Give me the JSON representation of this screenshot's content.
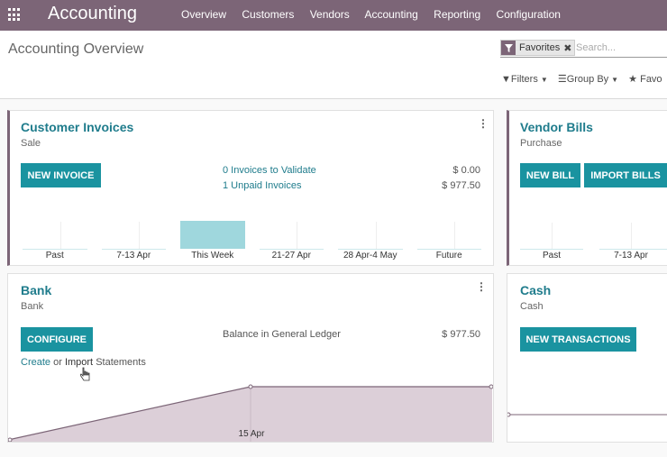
{
  "navbar": {
    "brand": "Accounting",
    "menu": [
      "Overview",
      "Customers",
      "Vendors",
      "Accounting",
      "Reporting",
      "Configuration"
    ]
  },
  "control": {
    "title": "Accounting Overview",
    "facet_label": "Favorites",
    "search_placeholder": "Search...",
    "filters_label": "Filters",
    "groupby_label": "Group By",
    "favorites_label": "Favo"
  },
  "cards": {
    "customer_invoices": {
      "title": "Customer Invoices",
      "subtitle": "Sale",
      "button": "NEW INVOICE",
      "to_validate": "0 Invoices to Validate",
      "to_validate_amount": "$ 0.00",
      "unpaid": "1 Unpaid Invoices",
      "unpaid_amount": "$ 977.50",
      "chart_data": {
        "type": "bar",
        "categories": [
          "Past",
          "7-13 Apr",
          "This Week",
          "21-27 Apr",
          "28 Apr-4 May",
          "Future"
        ],
        "values": [
          0,
          0,
          977.5,
          0,
          0,
          0
        ]
      }
    },
    "vendor_bills": {
      "title": "Vendor Bills",
      "subtitle": "Purchase",
      "button_new": "NEW BILL",
      "button_import": "IMPORT BILLS",
      "chart_labels": [
        "Past",
        "7-13 Apr"
      ]
    },
    "bank": {
      "title": "Bank",
      "subtitle": "Bank",
      "button": "CONFIGURE",
      "balance_label": "Balance in General Ledger",
      "balance_amount": "$ 977.50",
      "create_link": "Create",
      "or_text": "or",
      "import_link": "Import",
      "statements_text": "Statements",
      "chart_data": {
        "type": "area",
        "xlabel_tick": "15 Apr",
        "points": [
          0,
          977.5,
          977.5
        ]
      }
    },
    "cash": {
      "title": "Cash",
      "subtitle": "Cash",
      "button": "NEW TRANSACTIONS"
    }
  },
  "colors": {
    "navbar": "#7c6577",
    "accent": "#1f7c8c",
    "button": "#1a93a0",
    "bar": "#9fd7dd",
    "area": "#dccfd8"
  }
}
